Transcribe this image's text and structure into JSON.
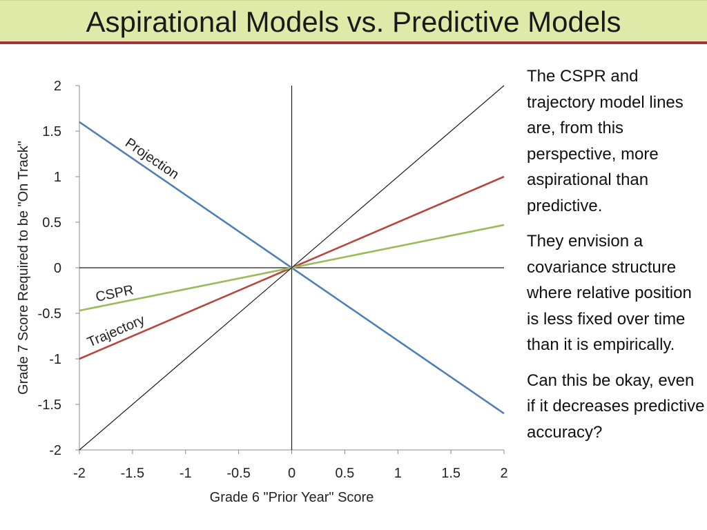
{
  "slide": {
    "title": "Aspirational Models vs. Predictive Models",
    "paragraphs": [
      "The CSPR and trajectory model lines are, from this perspective, more aspirational than predictive.",
      "They envision a covariance structure where relative position is less fixed over time than it is empirically.",
      "Can this be okay, even if it decreases predictive accuracy?"
    ]
  },
  "colors": {
    "title_bg": "#dfeaa9",
    "title_rule": "#a4333f",
    "projection": "#4f7fb5",
    "trajectory": "#b5473f",
    "cspr": "#9bbb59",
    "identity": "#1a1a1a"
  },
  "chart_data": {
    "type": "line",
    "xlabel": "Grade 6 \"Prior Year\" Score",
    "ylabel": "Grade 7 Score Required to be \"On Track\"",
    "xlim": [
      -2,
      2
    ],
    "ylim": [
      -2,
      2
    ],
    "xticks": [
      "-2",
      "-1.5",
      "-1",
      "-0.5",
      "0",
      "0.5",
      "1",
      "1.5",
      "2"
    ],
    "yticks": [
      "2",
      "1.5",
      "1",
      "0.5",
      "0",
      "-0.5",
      "-1",
      "-1.5",
      "-2"
    ],
    "grid": false,
    "series": [
      {
        "name": "Projection",
        "color": "#4f7fb5",
        "x": [
          -2,
          2
        ],
        "y": [
          1.6,
          -1.6
        ]
      },
      {
        "name": "Trajectory",
        "color": "#b5473f",
        "x": [
          -2,
          2
        ],
        "y": [
          -1.0,
          1.0
        ]
      },
      {
        "name": "CSPR",
        "color": "#9bbb59",
        "x": [
          -2,
          2
        ],
        "y": [
          -0.47,
          0.47
        ]
      },
      {
        "name": "",
        "color": "#1a1a1a",
        "x": [
          -2,
          2
        ],
        "y": [
          -2,
          2
        ]
      }
    ],
    "annotations": [
      "Projection",
      "CSPR",
      "Trajectory"
    ]
  }
}
